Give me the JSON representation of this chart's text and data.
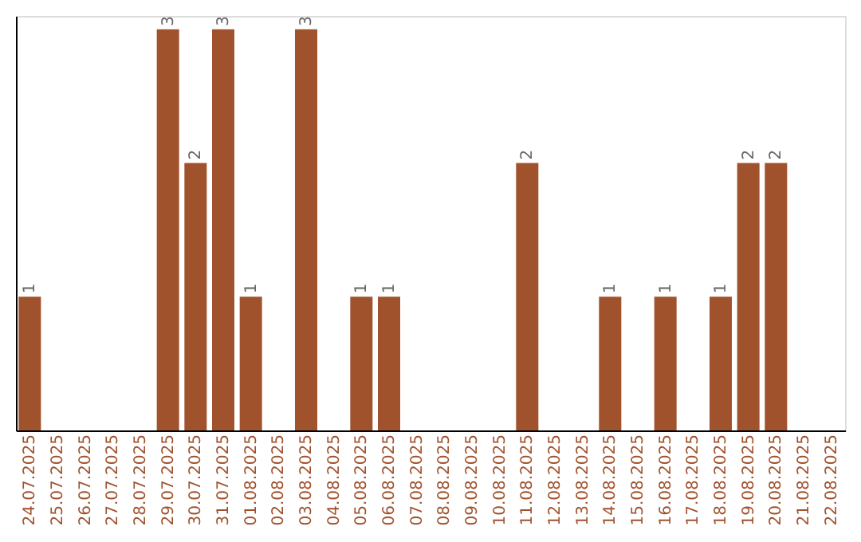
{
  "chart_data": {
    "type": "bar",
    "categories": [
      "24.07.2025",
      "25.07.2025",
      "26.07.2025",
      "27.07.2025",
      "28.07.2025",
      "29.07.2025",
      "30.07.2025",
      "31.07.2025",
      "01.08.2025",
      "02.08.2025",
      "03.08.2025",
      "04.08.2025",
      "05.08.2025",
      "06.08.2025",
      "07.08.2025",
      "08.08.2025",
      "09.08.2025",
      "10.08.2025",
      "11.08.2025",
      "12.08.2025",
      "13.08.2025",
      "14.08.2025",
      "15.08.2025",
      "16.08.2025",
      "17.08.2025",
      "18.08.2025",
      "19.08.2025",
      "20.08.2025",
      "21.08.2025",
      "22.08.2025"
    ],
    "values": [
      1,
      0,
      0,
      0,
      0,
      3,
      2,
      3,
      1,
      0,
      3,
      0,
      1,
      1,
      0,
      0,
      0,
      0,
      2,
      0,
      0,
      1,
      0,
      1,
      0,
      1,
      2,
      2,
      0,
      0
    ],
    "value_labels": [
      "1",
      null,
      null,
      null,
      null,
      "3",
      "2",
      "3",
      "1",
      null,
      "3",
      null,
      "1",
      "1",
      null,
      null,
      null,
      null,
      "2",
      null,
      null,
      "1",
      null,
      "1",
      null,
      "1",
      "2",
      "2",
      null,
      null
    ],
    "color": "#a0522d",
    "ylim": [
      0,
      3.1
    ],
    "tick_labels": "x",
    "grid": false
  }
}
